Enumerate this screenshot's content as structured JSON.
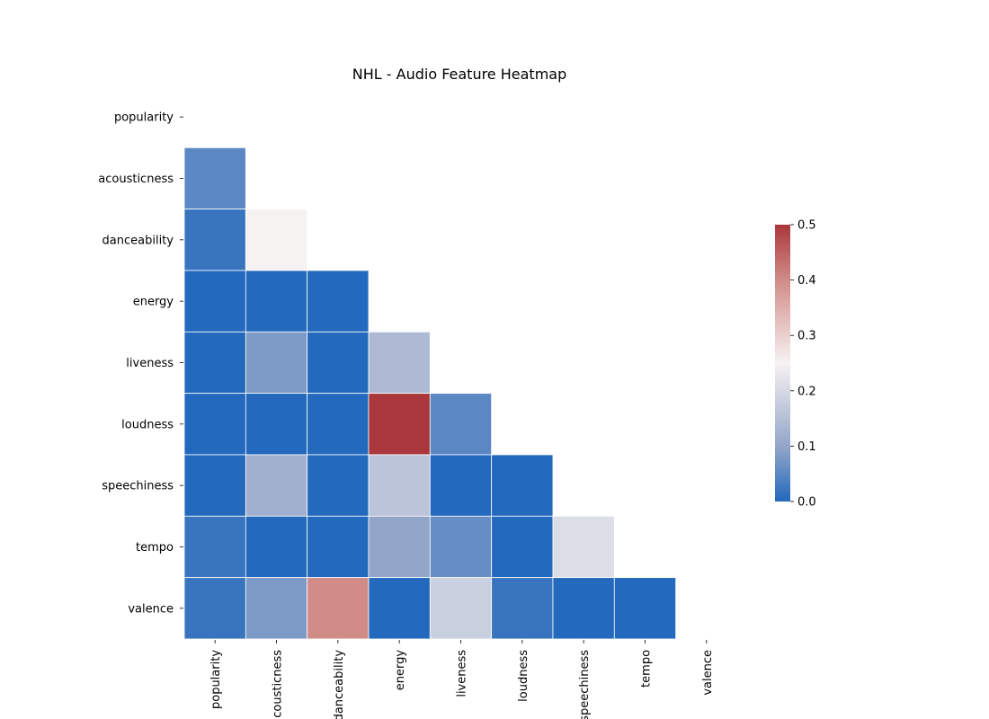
{
  "chart_data": {
    "type": "heatmap",
    "title": "NHL - Audio Feature Heatmap",
    "xlabel": "",
    "ylabel": "",
    "labels": [
      "popularity",
      "acousticness",
      "danceability",
      "energy",
      "liveness",
      "loudness",
      "speechiness",
      "tempo",
      "valence"
    ],
    "mask": "upper-triangle-including-diagonal",
    "values": [
      [
        null,
        null,
        null,
        null,
        null,
        null,
        null,
        null,
        null
      ],
      [
        0.05,
        null,
        null,
        null,
        null,
        null,
        null,
        null,
        null
      ],
      [
        0.02,
        0.25,
        null,
        null,
        null,
        null,
        null,
        null,
        null
      ],
      [
        0.0,
        0.0,
        0.0,
        null,
        null,
        null,
        null,
        null,
        null
      ],
      [
        0.0,
        0.08,
        0.0,
        0.14,
        null,
        null,
        null,
        null,
        null
      ],
      [
        0.0,
        0.0,
        0.0,
        0.5,
        0.05,
        null,
        null,
        null,
        null
      ],
      [
        0.0,
        0.12,
        0.0,
        0.16,
        0.0,
        0.0,
        null,
        null,
        null
      ],
      [
        0.02,
        0.0,
        0.0,
        0.1,
        0.06,
        0.0,
        0.21,
        null,
        null
      ],
      [
        0.02,
        0.08,
        0.4,
        0.0,
        0.18,
        0.02,
        0.0,
        0.0,
        null
      ]
    ],
    "colorbar": {
      "vmin": 0.0,
      "vmax": 0.5,
      "ticks": [
        "0.0",
        "0.1",
        "0.2",
        "0.3",
        "0.4",
        "0.5"
      ],
      "colormap": "vlag",
      "colors": {
        "low": "#2369bd",
        "mid": "#f7f2f2",
        "high": "#a9373b"
      }
    },
    "grid": false,
    "legend": "right-colorbar"
  }
}
